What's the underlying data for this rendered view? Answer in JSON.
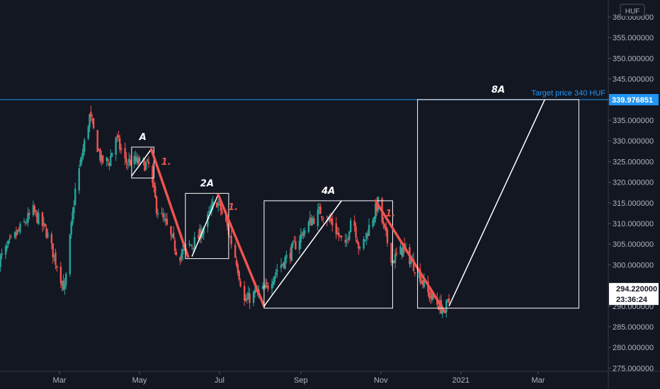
{
  "chart_data": {
    "type": "candlestick",
    "currency_unit": "HUF",
    "ylim": [
      273.5,
      368.5
    ],
    "y_ticks": [
      "275.000000",
      "280.000000",
      "285.000000",
      "290.000000",
      "295.000000",
      "300.000000",
      "305.000000",
      "310.000000",
      "315.000000",
      "320.000000",
      "325.000000",
      "330.000000",
      "335.000000",
      "340.000000",
      "345.000000",
      "350.000000",
      "355.000000",
      "360.000000"
    ],
    "y_tick_values": [
      275,
      280,
      285,
      290,
      295,
      300,
      305,
      310,
      315,
      320,
      325,
      330,
      335,
      340,
      345,
      350,
      355,
      360
    ],
    "x_ticks": [
      "Mar",
      "May",
      "Jul",
      "Sep",
      "Nov",
      "2021",
      "Mar"
    ],
    "x_tick_dates": [
      "2020-03-01",
      "2020-05-01",
      "2020-07-01",
      "2020-09-01",
      "2020-11-01",
      "2021-01-01",
      "2021-03-01"
    ],
    "price_path_dates": [
      "2020-01-15",
      "2020-01-25",
      "2020-02-10",
      "2020-02-20",
      "2020-03-05",
      "2020-03-13",
      "2020-03-24",
      "2020-04-02",
      "2020-04-08",
      "2020-04-13",
      "2020-04-20",
      "2020-04-28",
      "2020-05-08",
      "2020-05-14",
      "2020-05-22",
      "2020-05-31",
      "2020-06-05",
      "2020-06-14",
      "2020-06-22",
      "2020-06-28",
      "2020-07-01",
      "2020-07-06",
      "2020-07-14",
      "2020-07-20",
      "2020-07-28",
      "2020-08-05",
      "2020-08-14",
      "2020-08-22",
      "2020-08-30",
      "2020-09-07",
      "2020-09-16",
      "2020-09-25",
      "2020-10-05",
      "2020-10-10",
      "2020-10-16",
      "2020-10-24",
      "2020-10-30",
      "2020-11-03",
      "2020-11-10",
      "2020-11-18",
      "2020-11-24",
      "2020-11-30",
      "2020-12-07",
      "2020-12-13",
      "2020-12-19",
      "2020-12-23"
    ],
    "price_path_closes": [
      301,
      306,
      313,
      308,
      294,
      318,
      336,
      325,
      325,
      331,
      325,
      325,
      324,
      314,
      309,
      302,
      304,
      306,
      311,
      316,
      314,
      310,
      301,
      291,
      293,
      294,
      299,
      302,
      306,
      310,
      313,
      310,
      304,
      313,
      303,
      310,
      315,
      309,
      301,
      304,
      301,
      298,
      293,
      291,
      289,
      291
    ],
    "target_price": 339.976851,
    "target_label": "Target price 340 HUF",
    "target_tag": "339.976851",
    "current_price": "294.220000",
    "countdown": "23:36:24",
    "colors": {
      "background": "#131722",
      "up": "#26a69a",
      "down": "#ef5350",
      "target": "#2196f3",
      "annotation": "#ffffff",
      "red_leg": "#f05350"
    },
    "patterns": [
      {
        "label": "A",
        "x0": "2020-04-25",
        "x1": "2020-05-12",
        "y0": 321,
        "y1": 328.5,
        "diagonal_from": [
          "2020-04-25",
          321.5
        ],
        "diagonal_to": [
          "2020-05-10",
          328
        ],
        "red_leg_from": [
          "2020-05-10",
          328
        ],
        "red_leg_to": [
          "2020-06-07",
          302
        ],
        "red_label": "1."
      },
      {
        "label": "2A",
        "x0": "2020-06-05",
        "x1": "2020-07-08",
        "y0": 301.5,
        "y1": 317.3,
        "diagonal_from": [
          "2020-06-10",
          302
        ],
        "diagonal_to": [
          "2020-06-30",
          317
        ],
        "red_leg_from": [
          "2020-06-30",
          317
        ],
        "red_leg_to": [
          "2020-08-04",
          290
        ],
        "red_label": "1."
      },
      {
        "label": "4A",
        "x0": "2020-08-04",
        "x1": "2020-11-10",
        "y0": 289.5,
        "y1": 315.5,
        "diagonal_from": [
          "2020-08-04",
          290
        ],
        "diagonal_to": [
          "2020-10-02",
          315.5
        ],
        "red_leg_from": [
          "2020-10-28",
          315.5
        ],
        "red_leg_to": [
          "2020-12-20",
          288.5
        ],
        "red_label": "1."
      },
      {
        "label": "8A",
        "x0": "2020-11-29",
        "x1": "2021-04-01",
        "y0": 289.5,
        "y1": 340,
        "diagonal_from": [
          "2020-12-23",
          290
        ],
        "diagonal_to": [
          "2021-03-06",
          340
        ]
      }
    ]
  }
}
